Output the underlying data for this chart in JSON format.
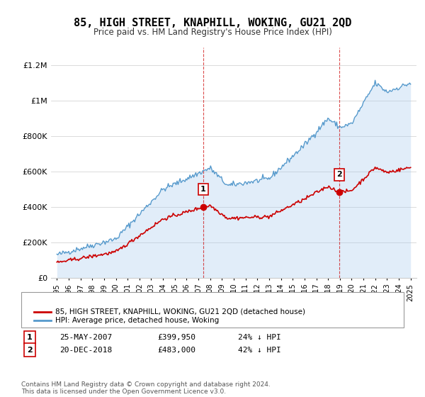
{
  "title": "85, HIGH STREET, KNAPHILL, WOKING, GU21 2QD",
  "subtitle": "Price paid vs. HM Land Registry's House Price Index (HPI)",
  "legend_label_red": "85, HIGH STREET, KNAPHILL, WOKING, GU21 2QD (detached house)",
  "legend_label_blue": "HPI: Average price, detached house, Woking",
  "footnote": "Contains HM Land Registry data © Crown copyright and database right 2024.\nThis data is licensed under the Open Government Licence v3.0.",
  "transaction1_label": "1",
  "transaction1_date": "25-MAY-2007",
  "transaction1_price": "£399,950",
  "transaction1_hpi": "24% ↓ HPI",
  "transaction2_label": "2",
  "transaction2_date": "20-DEC-2018",
  "transaction2_price": "£483,000",
  "transaction2_hpi": "42% ↓ HPI",
  "red_color": "#cc0000",
  "blue_color": "#5599cc",
  "blue_fill": "#aaccee",
  "ylim": [
    0,
    1300000
  ],
  "yticks": [
    0,
    200000,
    400000,
    600000,
    800000,
    1000000,
    1200000
  ],
  "ytick_labels": [
    "£0",
    "£200K",
    "£400K",
    "£600K",
    "£800K",
    "£1M",
    "£1.2M"
  ]
}
